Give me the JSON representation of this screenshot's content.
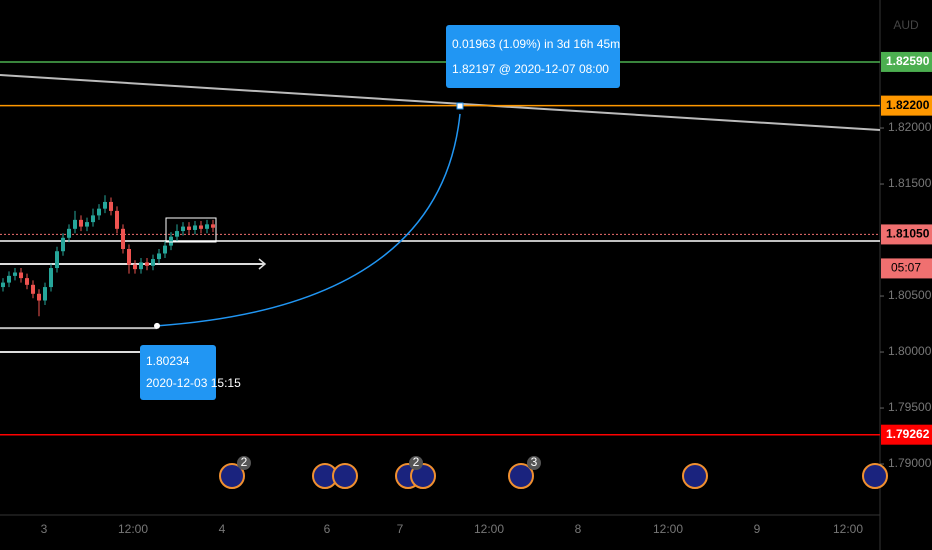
{
  "chart_data": {
    "type": "candlestick",
    "currency": "AUD",
    "open": [
      1.8058,
      1.8062,
      1.8068,
      1.8071,
      1.8066,
      1.806,
      1.8052,
      1.8046,
      1.8058,
      1.8075,
      1.809,
      1.8102,
      1.811,
      1.8118,
      1.8112,
      1.8116,
      1.8122,
      1.8128,
      1.8134,
      1.8126,
      1.811,
      1.8092,
      1.8078,
      1.8074,
      1.808,
      1.8077,
      1.8083,
      1.8088,
      1.8095,
      1.8103,
      1.8108,
      1.8112,
      1.8109,
      1.8113,
      1.811,
      1.8114
    ],
    "high": [
      1.8066,
      1.8072,
      1.8075,
      1.8075,
      1.807,
      1.8064,
      1.8056,
      1.8062,
      1.8079,
      1.8094,
      1.8106,
      1.8114,
      1.8126,
      1.8122,
      1.812,
      1.8128,
      1.8132,
      1.814,
      1.8138,
      1.813,
      1.8114,
      1.8096,
      1.8082,
      1.8084,
      1.8084,
      1.8087,
      1.8092,
      1.8099,
      1.8107,
      1.8114,
      1.8116,
      1.8116,
      1.8117,
      1.8117,
      1.8118,
      1.8118
    ],
    "low": [
      1.8054,
      1.8058,
      1.8064,
      1.8062,
      1.8056,
      1.8048,
      1.8032,
      1.8042,
      1.8054,
      1.8071,
      1.8086,
      1.8098,
      1.8106,
      1.8108,
      1.8108,
      1.8112,
      1.8118,
      1.8124,
      1.8122,
      1.8106,
      1.8088,
      1.807,
      1.807,
      1.807,
      1.8073,
      1.8073,
      1.8079,
      1.8084,
      1.8091,
      1.8099,
      1.8104,
      1.8105,
      1.8105,
      1.8106,
      1.8106,
      1.8107
    ],
    "close": [
      1.8062,
      1.8068,
      1.8071,
      1.8066,
      1.806,
      1.8052,
      1.8046,
      1.8058,
      1.8075,
      1.809,
      1.8102,
      1.811,
      1.8118,
      1.8112,
      1.8116,
      1.8122,
      1.8128,
      1.8134,
      1.8126,
      1.811,
      1.8092,
      1.8078,
      1.8074,
      1.808,
      1.8077,
      1.8083,
      1.8088,
      1.8095,
      1.8103,
      1.8108,
      1.8112,
      1.8109,
      1.8113,
      1.811,
      1.8114,
      1.8111
    ],
    "up_color": "#26a69a",
    "down_color": "#ef5350",
    "ylim": [
      1.78545,
      1.83143
    ],
    "yticks": [
      {
        "value": 1.79,
        "label": "1.79000"
      },
      {
        "value": 1.795,
        "label": "1.79500"
      },
      {
        "value": 1.8,
        "label": "1.80000"
      },
      {
        "value": 1.805,
        "label": "1.80500"
      },
      {
        "value": 1.815,
        "label": "1.81500"
      },
      {
        "value": 1.82,
        "label": "1.82000"
      }
    ],
    "x_labels": [
      "3",
      "12:00",
      "4",
      "6",
      "7",
      "12:00",
      "8",
      "12:00",
      "9",
      "12:00"
    ],
    "price_levels": [
      {
        "value": 1.8259,
        "label": "1.82590",
        "color": "#4caf50",
        "text_color": "#ffffff"
      },
      {
        "value": 1.822,
        "label": "1.82200",
        "color": "#ff9800",
        "text_color": "#000000"
      },
      {
        "value": 1.8105,
        "label": "1.81050",
        "color": "#f07070",
        "text_color": "#000000",
        "dotted": true
      },
      {
        "value": 1.79262,
        "label": "1.79262",
        "color": "#ff0000",
        "text_color": "#ffffff"
      }
    ],
    "countdown": "05:07",
    "support_line": 1.80991,
    "trend_line": [
      1.82473,
      1.81982
    ],
    "rays": [
      1.80786,
      1.80214,
      1.8
    ],
    "measure": {
      "start": 1.80234,
      "start_time": "2020-12-03 15:15",
      "end": 1.82197,
      "change_label": "0.01963 (1.09%) in 3d 16h 45m",
      "target_label": "1.82197 @ 2020-12-07  08:00"
    },
    "event_badges": [
      2,
      2,
      3
    ]
  }
}
